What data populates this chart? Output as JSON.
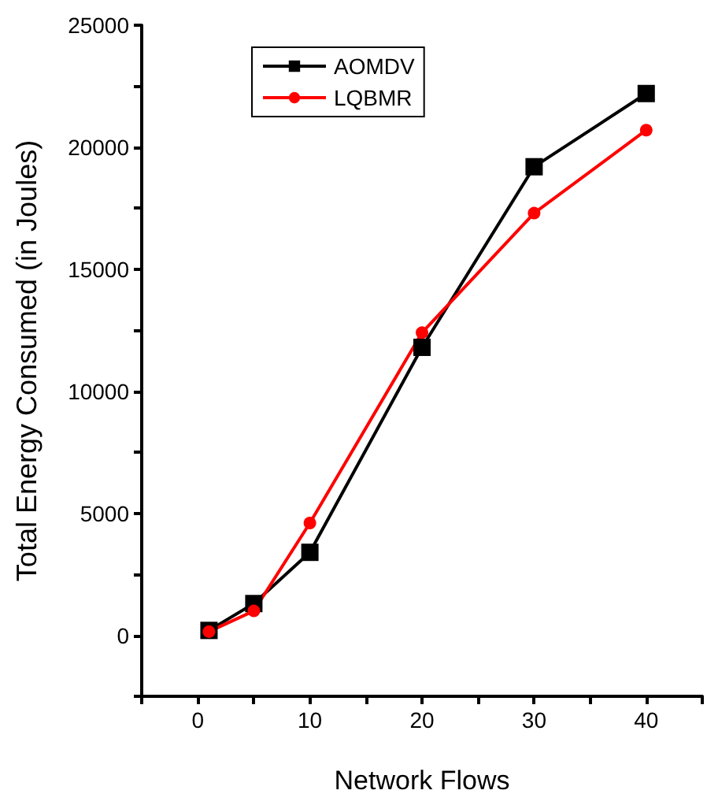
{
  "chart_data": {
    "type": "line",
    "xlabel": "Network Flows",
    "ylabel": "Total Energy Consumed (in Joules)",
    "x": [
      1,
      5,
      10,
      20,
      30,
      40
    ],
    "series": [
      {
        "name": "AOMDV",
        "color": "#000000",
        "marker": "square",
        "values": [
          200,
          1300,
          3400,
          11800,
          19200,
          22200
        ]
      },
      {
        "name": "LQBMR",
        "color": "#ff0000",
        "marker": "circle",
        "values": [
          150,
          1000,
          4600,
          12400,
          17300,
          20700
        ]
      }
    ],
    "xlim": [
      -5,
      45
    ],
    "xticks": [
      {
        "value": -5,
        "label": null
      },
      0,
      {
        "value": 5,
        "label": null
      },
      10,
      {
        "value": 15,
        "label": null
      },
      20,
      {
        "value": 25,
        "label": null
      },
      30,
      {
        "value": 35,
        "label": null
      },
      40,
      {
        "value": 45,
        "label": null
      }
    ],
    "ylim": [
      -2500,
      25000
    ],
    "yticks": [
      {
        "value": -2500,
        "label": null
      },
      0,
      {
        "value": 2500,
        "label": null
      },
      5000,
      {
        "value": 7500,
        "label": null
      },
      10000,
      {
        "value": 12500,
        "label": null
      },
      15000,
      {
        "value": 17500,
        "label": null
      },
      20000,
      {
        "value": 22500,
        "label": null
      },
      25000
    ],
    "grid": false,
    "legend": "top left",
    "line_style": "solid"
  }
}
